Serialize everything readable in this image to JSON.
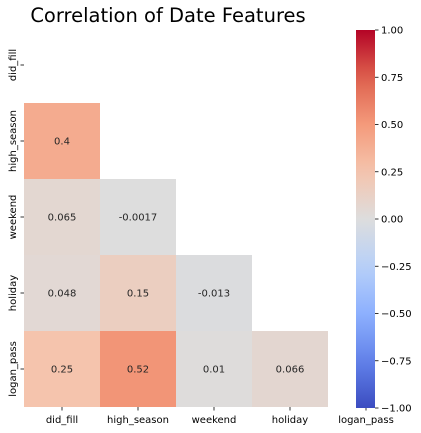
{
  "chart_data": {
    "type": "heatmap",
    "title": "Correlation of Date Features",
    "variables": [
      "did_fill",
      "high_season",
      "weekend",
      "holiday",
      "logan_pass"
    ],
    "mask": "upper-triangle-including-diagonal",
    "cells": [
      {
        "row": "high_season",
        "col": "did_fill",
        "value": 0.4,
        "label": "0.4"
      },
      {
        "row": "weekend",
        "col": "did_fill",
        "value": 0.065,
        "label": "0.065"
      },
      {
        "row": "weekend",
        "col": "high_season",
        "value": -0.0017,
        "label": "-0.0017"
      },
      {
        "row": "holiday",
        "col": "did_fill",
        "value": 0.048,
        "label": "0.048"
      },
      {
        "row": "holiday",
        "col": "high_season",
        "value": 0.15,
        "label": "0.15"
      },
      {
        "row": "holiday",
        "col": "weekend",
        "value": -0.013,
        "label": "-0.013"
      },
      {
        "row": "logan_pass",
        "col": "did_fill",
        "value": 0.25,
        "label": "0.25"
      },
      {
        "row": "logan_pass",
        "col": "high_season",
        "value": 0.52,
        "label": "0.52"
      },
      {
        "row": "logan_pass",
        "col": "weekend",
        "value": 0.01,
        "label": "0.01"
      },
      {
        "row": "logan_pass",
        "col": "holiday",
        "value": 0.066,
        "label": "0.066"
      }
    ],
    "colormap": "coolwarm",
    "vmin": -1.0,
    "vmax": 1.0,
    "colorbar_ticks": [
      "1.00",
      "0.75",
      "0.50",
      "0.25",
      "0.00",
      "−0.25",
      "−0.50",
      "−0.75",
      "−1.00"
    ],
    "colorbar_tick_values": [
      1.0,
      0.75,
      0.5,
      0.25,
      0.0,
      -0.25,
      -0.5,
      -0.75,
      -1.0
    ],
    "colorbar_placement": "right",
    "grid": false
  }
}
